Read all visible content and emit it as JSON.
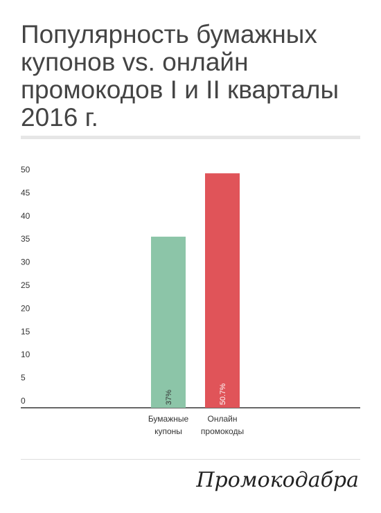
{
  "chart_data": {
    "type": "bar",
    "title": "Популярность бумажных купонов vs. онлайн промокодов I и II кварталы 2016 г.",
    "categories": [
      "Бумажные купоны",
      "Онлайн промокоды"
    ],
    "values": [
      37,
      50.7
    ],
    "value_labels": [
      "37%",
      "50.7%"
    ],
    "colors": [
      "#8cc5a8",
      "#e05459"
    ],
    "ylim": [
      0,
      52
    ],
    "yticks": [
      0,
      5,
      10,
      15,
      20,
      25,
      30,
      35,
      40,
      45,
      50
    ],
    "grid": false
  },
  "logo": "Промокодабра"
}
